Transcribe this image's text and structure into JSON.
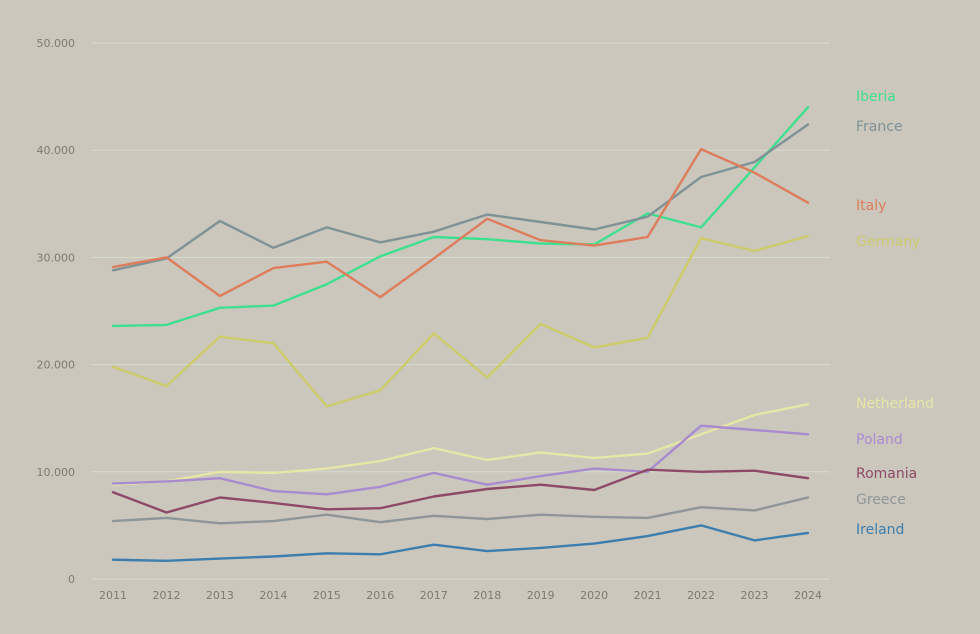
{
  "chart_data": {
    "type": "line",
    "title": "",
    "xlabel": "",
    "ylabel": "",
    "x": [
      "2011",
      "2012",
      "2013",
      "2014",
      "2015",
      "2016",
      "2017",
      "2018",
      "2019",
      "2020",
      "2021",
      "2022",
      "2023",
      "2024"
    ],
    "ylim": [
      0,
      50000
    ],
    "y_ticks": [
      0,
      10000,
      20000,
      30000,
      40000,
      50000
    ],
    "y_tick_labels": [
      "0",
      "10.000",
      "20.000",
      "30.000",
      "40.000",
      "50.000"
    ],
    "grid": true,
    "legend": "right, labels at line ends",
    "series": [
      {
        "name": "Iberia",
        "color": "#3ee08f",
        "values": [
          23600,
          23700,
          25300,
          25500,
          27500,
          30100,
          31900,
          31700,
          31300,
          31200,
          34100,
          32800,
          38400,
          44000
        ]
      },
      {
        "name": "France",
        "color": "#7f9296",
        "values": [
          28800,
          29900,
          33400,
          30900,
          32800,
          31400,
          32400,
          34000,
          33300,
          32600,
          33800,
          37500,
          38900,
          42400
        ]
      },
      {
        "name": "Italy",
        "color": "#dd7d5c",
        "values": [
          29100,
          30000,
          26400,
          29000,
          29600,
          26300,
          29900,
          33600,
          31600,
          31100,
          31900,
          40100,
          37900,
          35100
        ]
      },
      {
        "name": "Germany",
        "color": "#cdcb6a",
        "values": [
          19800,
          18000,
          22600,
          22000,
          16100,
          17600,
          22900,
          18800,
          23800,
          21600,
          22500,
          31800,
          30600,
          32000
        ]
      },
      {
        "name": "Netherland",
        "color": "#e6e6a6",
        "values": [
          8800,
          9100,
          10000,
          9900,
          10300,
          11000,
          12200,
          11100,
          11800,
          11300,
          11700,
          13500,
          15300,
          16300
        ]
      },
      {
        "name": "Poland",
        "color": "#a98bd0",
        "values": [
          8900,
          9100,
          9400,
          8200,
          7900,
          8600,
          9900,
          8800,
          9600,
          10300,
          10000,
          14300,
          13900,
          13500
        ]
      },
      {
        "name": "Romania",
        "color": "#8d4a66",
        "values": [
          8100,
          6200,
          7600,
          7100,
          6500,
          6600,
          7700,
          8400,
          8800,
          8300,
          10200,
          10000,
          10100,
          9400
        ]
      },
      {
        "name": "Greece",
        "color": "#8e9698",
        "values": [
          5400,
          5700,
          5200,
          5400,
          6000,
          5300,
          5900,
          5600,
          6000,
          5800,
          5700,
          6700,
          6400,
          7600
        ]
      },
      {
        "name": "Ireland",
        "color": "#3c7eae",
        "values": [
          1800,
          1700,
          1900,
          2100,
          2400,
          2300,
          3200,
          2600,
          2900,
          3300,
          4000,
          5000,
          3600,
          4300
        ]
      }
    ]
  }
}
